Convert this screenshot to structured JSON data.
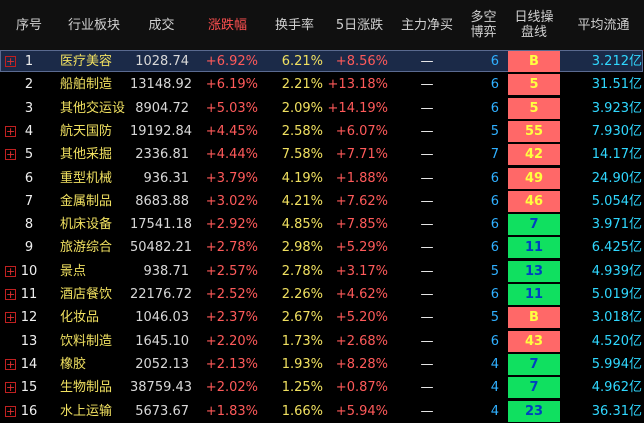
{
  "table": {
    "header": [
      "序号",
      "行业板块",
      "成交",
      "涨跌幅",
      "换手率",
      "5日涨跌",
      "主力净买",
      "多空\n博弈",
      "日线操\n盘线",
      "平均流通"
    ],
    "rows": [
      {
        "cells": [
          "1",
          "医疗美容",
          "1028.74",
          "+6.92%",
          "6.21%",
          "+8.56%",
          "—",
          "6",
          "B",
          "3.212亿"
        ],
        "expand": true,
        "signal": "red",
        "selected": true
      },
      {
        "cells": [
          "2",
          "船舶制造",
          "13148.92",
          "+6.19%",
          "2.21%",
          "+13.18%",
          "—",
          "6",
          "5",
          "31.51亿"
        ],
        "expand": false,
        "signal": "red",
        "selected": false
      },
      {
        "cells": [
          "3",
          "其他交运设",
          "8904.72",
          "+5.03%",
          "2.09%",
          "+14.19%",
          "—",
          "6",
          "5",
          "3.923亿"
        ],
        "expand": false,
        "signal": "red",
        "selected": false
      },
      {
        "cells": [
          "4",
          "航天国防",
          "19192.84",
          "+4.45%",
          "2.58%",
          "+6.07%",
          "—",
          "5",
          "55",
          "7.930亿"
        ],
        "expand": true,
        "signal": "red",
        "selected": false
      },
      {
        "cells": [
          "5",
          "其他采掘",
          "2336.81",
          "+4.44%",
          "7.58%",
          "+7.71%",
          "—",
          "7",
          "42",
          "14.17亿"
        ],
        "expand": true,
        "signal": "red",
        "selected": false
      },
      {
        "cells": [
          "6",
          "重型机械",
          "936.31",
          "+3.79%",
          "4.19%",
          "+1.88%",
          "—",
          "6",
          "49",
          "24.90亿"
        ],
        "expand": false,
        "signal": "red",
        "selected": false
      },
      {
        "cells": [
          "7",
          "金属制品",
          "8683.88",
          "+3.02%",
          "4.21%",
          "+7.62%",
          "—",
          "6",
          "46",
          "5.054亿"
        ],
        "expand": false,
        "signal": "red",
        "selected": false
      },
      {
        "cells": [
          "8",
          "机床设备",
          "17541.18",
          "+2.92%",
          "4.85%",
          "+7.85%",
          "—",
          "6",
          "7",
          "3.971亿"
        ],
        "expand": false,
        "signal": "green",
        "selected": false
      },
      {
        "cells": [
          "9",
          "旅游综合",
          "50482.21",
          "+2.78%",
          "2.98%",
          "+5.29%",
          "—",
          "6",
          "11",
          "6.425亿"
        ],
        "expand": false,
        "signal": "green",
        "selected": false
      },
      {
        "cells": [
          "10",
          "景点",
          "938.71",
          "+2.57%",
          "2.78%",
          "+3.17%",
          "—",
          "5",
          "13",
          "4.939亿"
        ],
        "expand": true,
        "signal": "green",
        "selected": false
      },
      {
        "cells": [
          "11",
          "酒店餐饮",
          "22176.72",
          "+2.52%",
          "2.26%",
          "+4.62%",
          "—",
          "6",
          "11",
          "5.019亿"
        ],
        "expand": true,
        "signal": "green",
        "selected": false
      },
      {
        "cells": [
          "12",
          "化妆品",
          "1046.03",
          "+2.37%",
          "2.67%",
          "+5.20%",
          "—",
          "5",
          "B",
          "3.018亿"
        ],
        "expand": true,
        "signal": "red",
        "selected": false
      },
      {
        "cells": [
          "13",
          "饮料制造",
          "1645.10",
          "+2.20%",
          "1.73%",
          "+2.68%",
          "—",
          "6",
          "43",
          "4.520亿"
        ],
        "expand": false,
        "signal": "red",
        "selected": false
      },
      {
        "cells": [
          "14",
          "橡胶",
          "2052.13",
          "+2.13%",
          "1.93%",
          "+8.28%",
          "—",
          "4",
          "7",
          "5.994亿"
        ],
        "expand": true,
        "signal": "green",
        "selected": false
      },
      {
        "cells": [
          "15",
          "生物制品",
          "38759.43",
          "+2.02%",
          "1.25%",
          "+0.87%",
          "—",
          "4",
          "7",
          "4.962亿"
        ],
        "expand": true,
        "signal": "green",
        "selected": false
      },
      {
        "cells": [
          "16",
          "水上运输",
          "5673.67",
          "+1.83%",
          "1.66%",
          "+5.94%",
          "—",
          "4",
          "23",
          "36.31亿"
        ],
        "expand": true,
        "signal": "green",
        "selected": false
      }
    ]
  }
}
